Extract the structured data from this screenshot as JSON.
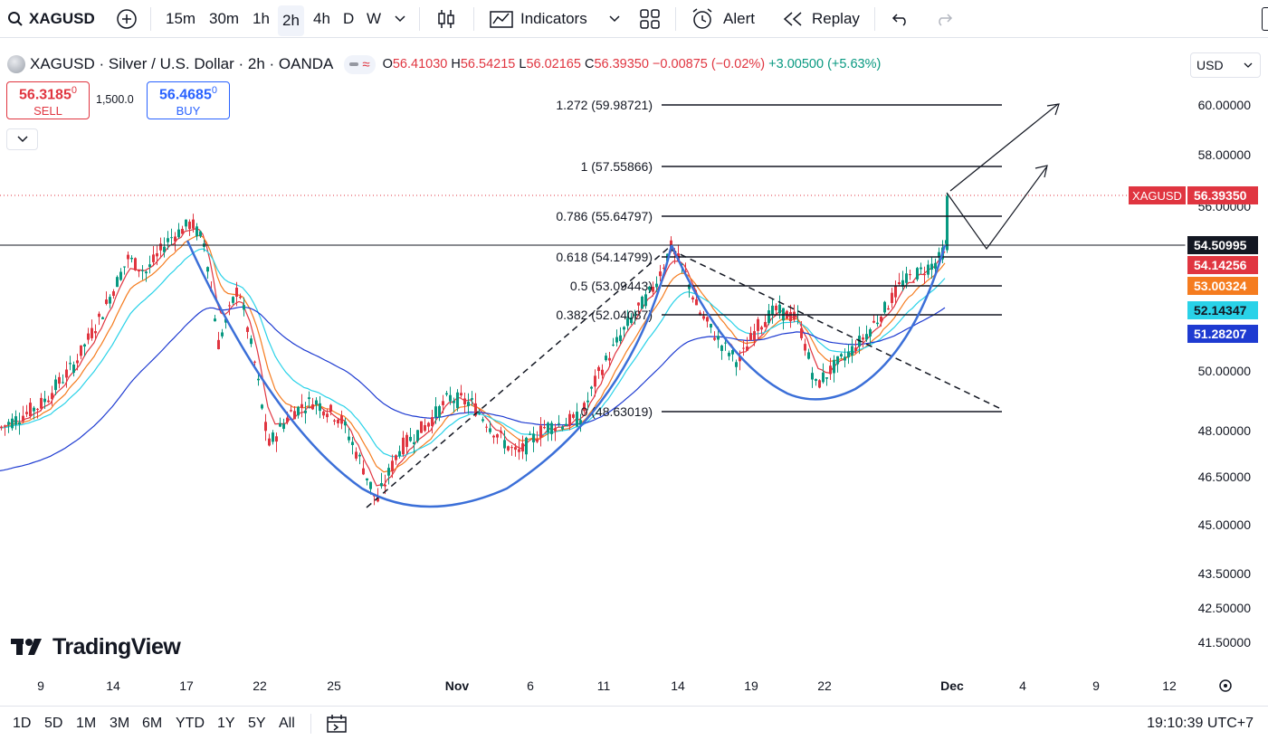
{
  "toolbar": {
    "symbol": "XAGUSD",
    "intervals": [
      "15m",
      "30m",
      "1h",
      "2h",
      "4h",
      "D",
      "W"
    ],
    "active_interval": "2h",
    "indicators_label": "Indicators",
    "alert_label": "Alert",
    "replay_label": "Replay"
  },
  "legend": {
    "title": "XAGUSD · Silver / U.S. Dollar · 2h · OANDA",
    "open_label": "O",
    "open": "56.41030",
    "high_label": "H",
    "high": "56.54215",
    "low_label": "L",
    "low": "56.02165",
    "close_label": "C",
    "close": "56.39350",
    "change": "−0.00875 (−0.02%)",
    "change2": "+3.00500 (+5.63%)"
  },
  "trade": {
    "sell_price_main": "56.3185",
    "sell_price_sup": "0",
    "sell_label": "SELL",
    "quantity": "1,500.0",
    "buy_price_main": "56.4685",
    "buy_price_sup": "0",
    "buy_label": "BUY"
  },
  "currency": "USD",
  "price_axis": [
    "60.00000",
    "58.00000",
    "56.00000",
    "50.00000",
    "48.00000",
    "46.50000",
    "45.00000",
    "43.50000",
    "42.50000",
    "41.50000"
  ],
  "price_tags": {
    "symbol": "XAGUSD",
    "last": "56.39350",
    "level": "54.50995",
    "ma1": "54.14256",
    "ma2": "53.00324",
    "ma3": "52.14347",
    "ma4": "51.28207"
  },
  "colors": {
    "up": "#089981",
    "down": "#e03540",
    "ma1": "#e03540",
    "ma2": "#f57c1f",
    "ma3": "#29d2e8",
    "ma4": "#1e3bd1",
    "pattern": "#3b6fd8"
  },
  "fib_levels": [
    {
      "label": "1.272 (59.98721)",
      "value": 59.98721
    },
    {
      "label": "1 (57.55866)",
      "value": 57.55866
    },
    {
      "label": "0.786 (55.64797)",
      "value": 55.64797
    },
    {
      "label": "0.618 (54.14799)",
      "value": 54.14799
    },
    {
      "label": "0.5 (53.09443)",
      "value": 53.09443
    },
    {
      "label": "0.382 (52.04087)",
      "value": 52.04087
    },
    {
      "label": "0 (48.63019)",
      "value": 48.63019
    }
  ],
  "time_axis": [
    "9",
    "14",
    "17",
    "22",
    "25",
    "Nov",
    "6",
    "11",
    "14",
    "19",
    "22",
    "Dec",
    "4",
    "9",
    "12"
  ],
  "ranges": [
    "1D",
    "5D",
    "1M",
    "3M",
    "6M",
    "YTD",
    "1Y",
    "5Y",
    "All"
  ],
  "clock": "19:10:39 UTC+7",
  "watermark": "TradingView"
}
